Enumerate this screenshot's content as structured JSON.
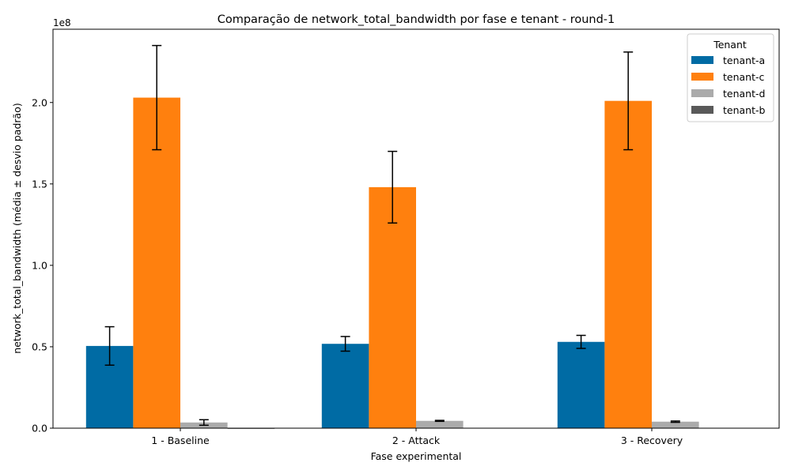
{
  "chart_data": {
    "type": "bar",
    "title": "Comparação de network_total_bandwidth por fase e tenant - round-1",
    "xlabel": "Fase experimental",
    "ylabel": "network_total_bandwidth (média ± desvio padrão)",
    "y_multiplier_label": "1e8",
    "ylim": [
      0,
      2.45
    ],
    "y_ticks": [
      0.0,
      0.5,
      1.0,
      1.5,
      2.0
    ],
    "y_tick_labels": [
      "0.0",
      "0.5",
      "1.0",
      "1.5",
      "2.0"
    ],
    "categories": [
      "1 - Baseline",
      "2 - Attack",
      "3 - Recovery"
    ],
    "legend": {
      "title": "Tenant",
      "position": "top-right"
    },
    "grid": false,
    "series": [
      {
        "name": "tenant-a",
        "color": "#006ba4",
        "values": [
          0.505,
          0.518,
          0.53
        ],
        "errors": [
          0.118,
          0.045,
          0.04
        ]
      },
      {
        "name": "tenant-c",
        "color": "#ff800e",
        "values": [
          2.03,
          1.48,
          2.01
        ],
        "errors": [
          0.32,
          0.22,
          0.3
        ]
      },
      {
        "name": "tenant-d",
        "color": "#ababab",
        "values": [
          0.035,
          0.045,
          0.04
        ],
        "errors": [
          0.017,
          0.003,
          0.004
        ]
      },
      {
        "name": "tenant-b",
        "color": "#595959",
        "values": [
          0.0,
          0.002,
          0.002
        ],
        "errors": [
          0.0,
          0.0,
          0.0
        ]
      }
    ]
  }
}
